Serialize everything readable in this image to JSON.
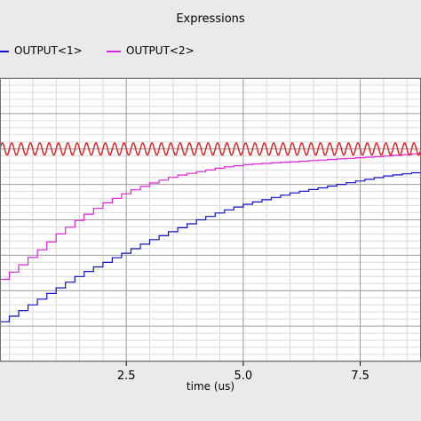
{
  "chart_data": {
    "type": "line",
    "title": "Expressions",
    "xlabel": "time (us)",
    "ylabel": "",
    "xlim": [
      -0.2,
      8.8
    ],
    "ylim": [
      0,
      1
    ],
    "grid": true,
    "legend_placement": "top-left",
    "x_ticks": [
      {
        "value": 2.5,
        "label": "2.5"
      },
      {
        "value": 5.0,
        "label": "5.0"
      },
      {
        "value": 7.5,
        "label": "7.5"
      }
    ],
    "series": [
      {
        "name": "OUTPUT<1>",
        "color": "#1010c8",
        "x": [
          -0.2,
          0.5,
          1.0,
          1.5,
          2.0,
          2.5,
          3.0,
          3.5,
          4.0,
          4.5,
          5.0,
          5.5,
          6.0,
          6.5,
          7.0,
          7.5,
          8.0,
          8.8
        ],
        "y": [
          0.14,
          0.21,
          0.26,
          0.31,
          0.35,
          0.39,
          0.43,
          0.465,
          0.5,
          0.53,
          0.555,
          0.575,
          0.595,
          0.61,
          0.625,
          0.64,
          0.655,
          0.67
        ]
      },
      {
        "name": "OUTPUT<2>",
        "color": "#e020e0",
        "x": [
          -0.2,
          0.5,
          1.0,
          1.5,
          2.0,
          2.5,
          3.0,
          3.5,
          4.0,
          4.5,
          5.0,
          5.5,
          6.0,
          6.5,
          7.0,
          7.5,
          8.0,
          8.8
        ],
        "y": [
          0.29,
          0.38,
          0.45,
          0.51,
          0.56,
          0.6,
          0.63,
          0.655,
          0.67,
          0.685,
          0.695,
          0.7,
          0.705,
          0.71,
          0.715,
          0.72,
          0.725,
          0.735
        ]
      },
      {
        "name": "",
        "color": "#e02020",
        "mean": 0.75,
        "amplitude": 0.022,
        "period": 0.2,
        "x_range": [
          -0.2,
          8.8
        ]
      }
    ]
  }
}
